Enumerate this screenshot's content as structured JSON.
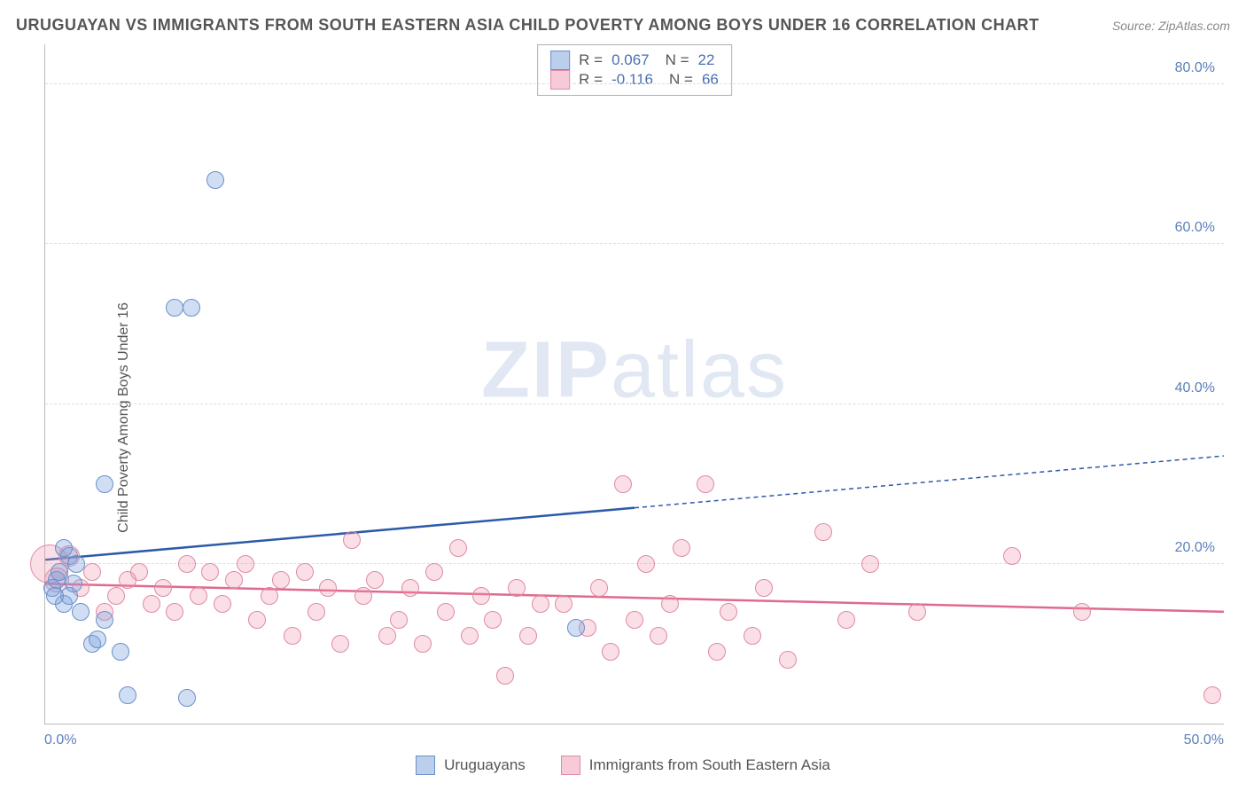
{
  "title": "URUGUAYAN VS IMMIGRANTS FROM SOUTH EASTERN ASIA CHILD POVERTY AMONG BOYS UNDER 16 CORRELATION CHART",
  "source": "Source: ZipAtlas.com",
  "y_axis_label": "Child Poverty Among Boys Under 16",
  "watermark_bold": "ZIP",
  "watermark_light": "atlas",
  "colors": {
    "blue_fill": "rgba(120,160,220,0.35)",
    "blue_stroke": "#6a90c8",
    "pink_fill": "rgba(240,150,175,0.3)",
    "pink_stroke": "#e08aa5",
    "blue_line": "#2d5aa8",
    "pink_line": "#e06a8c",
    "tick_color": "#5b7fb8",
    "grid_color": "#dddddd"
  },
  "chart": {
    "type": "scatter",
    "xlim": [
      0,
      50
    ],
    "ylim": [
      0,
      85
    ],
    "y_ticks": [
      20,
      40,
      60,
      80
    ],
    "y_tick_labels": [
      "20.0%",
      "40.0%",
      "60.0%",
      "80.0%"
    ],
    "x_tick_labels": [
      "0.0%",
      "50.0%"
    ],
    "series_blue": {
      "name": "Uruguayans",
      "R": "0.067",
      "N": "22",
      "trend": {
        "y_at_x0": 20.5,
        "y_at_x25": 27.0,
        "y_at_x50": 33.5
      },
      "points": [
        {
          "x": 0.3,
          "y": 17,
          "r": 10
        },
        {
          "x": 0.5,
          "y": 18,
          "r": 10
        },
        {
          "x": 0.8,
          "y": 15,
          "r": 10
        },
        {
          "x": 0.6,
          "y": 19,
          "r": 10
        },
        {
          "x": 1.0,
          "y": 16,
          "r": 10
        },
        {
          "x": 1.2,
          "y": 17.5,
          "r": 10
        },
        {
          "x": 1.5,
          "y": 14,
          "r": 10
        },
        {
          "x": 2.0,
          "y": 10,
          "r": 10
        },
        {
          "x": 2.2,
          "y": 10.5,
          "r": 10
        },
        {
          "x": 2.5,
          "y": 13,
          "r": 10
        },
        {
          "x": 2.5,
          "y": 30,
          "r": 10
        },
        {
          "x": 3.2,
          "y": 9,
          "r": 10
        },
        {
          "x": 3.5,
          "y": 3.5,
          "r": 10
        },
        {
          "x": 5.5,
          "y": 52,
          "r": 10
        },
        {
          "x": 6.2,
          "y": 52,
          "r": 10
        },
        {
          "x": 6.0,
          "y": 3.2,
          "r": 10
        },
        {
          "x": 7.2,
          "y": 68,
          "r": 10
        },
        {
          "x": 1.0,
          "y": 21,
          "r": 10
        },
        {
          "x": 1.3,
          "y": 20,
          "r": 10
        },
        {
          "x": 0.8,
          "y": 22,
          "r": 10
        },
        {
          "x": 22.5,
          "y": 12,
          "r": 10
        },
        {
          "x": 0.4,
          "y": 16,
          "r": 10
        }
      ]
    },
    "series_pink": {
      "name": "Immigrants from South Eastern Asia",
      "R": "-0.116",
      "N": "66",
      "trend": {
        "y_at_x0": 17.5,
        "y_at_x50": 14.0
      },
      "points": [
        {
          "x": 0.2,
          "y": 20,
          "r": 22
        },
        {
          "x": 0.5,
          "y": 18,
          "r": 14
        },
        {
          "x": 1.0,
          "y": 21,
          "r": 12
        },
        {
          "x": 1.5,
          "y": 17,
          "r": 10
        },
        {
          "x": 2.0,
          "y": 19,
          "r": 10
        },
        {
          "x": 2.5,
          "y": 14,
          "r": 10
        },
        {
          "x": 3.0,
          "y": 16,
          "r": 10
        },
        {
          "x": 3.5,
          "y": 18,
          "r": 10
        },
        {
          "x": 4.0,
          "y": 19,
          "r": 10
        },
        {
          "x": 4.5,
          "y": 15,
          "r": 10
        },
        {
          "x": 5.0,
          "y": 17,
          "r": 10
        },
        {
          "x": 5.5,
          "y": 14,
          "r": 10
        },
        {
          "x": 6.0,
          "y": 20,
          "r": 10
        },
        {
          "x": 6.5,
          "y": 16,
          "r": 10
        },
        {
          "x": 7.0,
          "y": 19,
          "r": 10
        },
        {
          "x": 7.5,
          "y": 15,
          "r": 10
        },
        {
          "x": 8.0,
          "y": 18,
          "r": 10
        },
        {
          "x": 8.5,
          "y": 20,
          "r": 10
        },
        {
          "x": 9.0,
          "y": 13,
          "r": 10
        },
        {
          "x": 9.5,
          "y": 16,
          "r": 10
        },
        {
          "x": 10.0,
          "y": 18,
          "r": 10
        },
        {
          "x": 10.5,
          "y": 11,
          "r": 10
        },
        {
          "x": 11.0,
          "y": 19,
          "r": 10
        },
        {
          "x": 11.5,
          "y": 14,
          "r": 10
        },
        {
          "x": 12.0,
          "y": 17,
          "r": 10
        },
        {
          "x": 12.5,
          "y": 10,
          "r": 10
        },
        {
          "x": 13.0,
          "y": 23,
          "r": 10
        },
        {
          "x": 13.5,
          "y": 16,
          "r": 10
        },
        {
          "x": 14.0,
          "y": 18,
          "r": 10
        },
        {
          "x": 14.5,
          "y": 11,
          "r": 10
        },
        {
          "x": 15.0,
          "y": 13,
          "r": 10
        },
        {
          "x": 15.5,
          "y": 17,
          "r": 10
        },
        {
          "x": 16.0,
          "y": 10,
          "r": 10
        },
        {
          "x": 16.5,
          "y": 19,
          "r": 10
        },
        {
          "x": 17.0,
          "y": 14,
          "r": 10
        },
        {
          "x": 17.5,
          "y": 22,
          "r": 10
        },
        {
          "x": 18.0,
          "y": 11,
          "r": 10
        },
        {
          "x": 18.5,
          "y": 16,
          "r": 10
        },
        {
          "x": 19.0,
          "y": 13,
          "r": 10
        },
        {
          "x": 19.5,
          "y": 6,
          "r": 10
        },
        {
          "x": 20.0,
          "y": 17,
          "r": 10
        },
        {
          "x": 20.5,
          "y": 11,
          "r": 10
        },
        {
          "x": 21.0,
          "y": 15,
          "r": 10
        },
        {
          "x": 22.0,
          "y": 15,
          "r": 10
        },
        {
          "x": 23.0,
          "y": 12,
          "r": 10
        },
        {
          "x": 23.5,
          "y": 17,
          "r": 10
        },
        {
          "x": 24.0,
          "y": 9,
          "r": 10
        },
        {
          "x": 24.5,
          "y": 30,
          "r": 10
        },
        {
          "x": 25.0,
          "y": 13,
          "r": 10
        },
        {
          "x": 25.5,
          "y": 20,
          "r": 10
        },
        {
          "x": 26.0,
          "y": 11,
          "r": 10
        },
        {
          "x": 26.5,
          "y": 15,
          "r": 10
        },
        {
          "x": 27.0,
          "y": 22,
          "r": 10
        },
        {
          "x": 28.0,
          "y": 30,
          "r": 10
        },
        {
          "x": 28.5,
          "y": 9,
          "r": 10
        },
        {
          "x": 29.0,
          "y": 14,
          "r": 10
        },
        {
          "x": 30.0,
          "y": 11,
          "r": 10
        },
        {
          "x": 30.5,
          "y": 17,
          "r": 10
        },
        {
          "x": 31.5,
          "y": 8,
          "r": 10
        },
        {
          "x": 33.0,
          "y": 24,
          "r": 10
        },
        {
          "x": 34.0,
          "y": 13,
          "r": 10
        },
        {
          "x": 35.0,
          "y": 20,
          "r": 10
        },
        {
          "x": 37.0,
          "y": 14,
          "r": 10
        },
        {
          "x": 41.0,
          "y": 21,
          "r": 10
        },
        {
          "x": 44.0,
          "y": 14,
          "r": 10
        },
        {
          "x": 49.5,
          "y": 3.5,
          "r": 10
        }
      ]
    }
  }
}
